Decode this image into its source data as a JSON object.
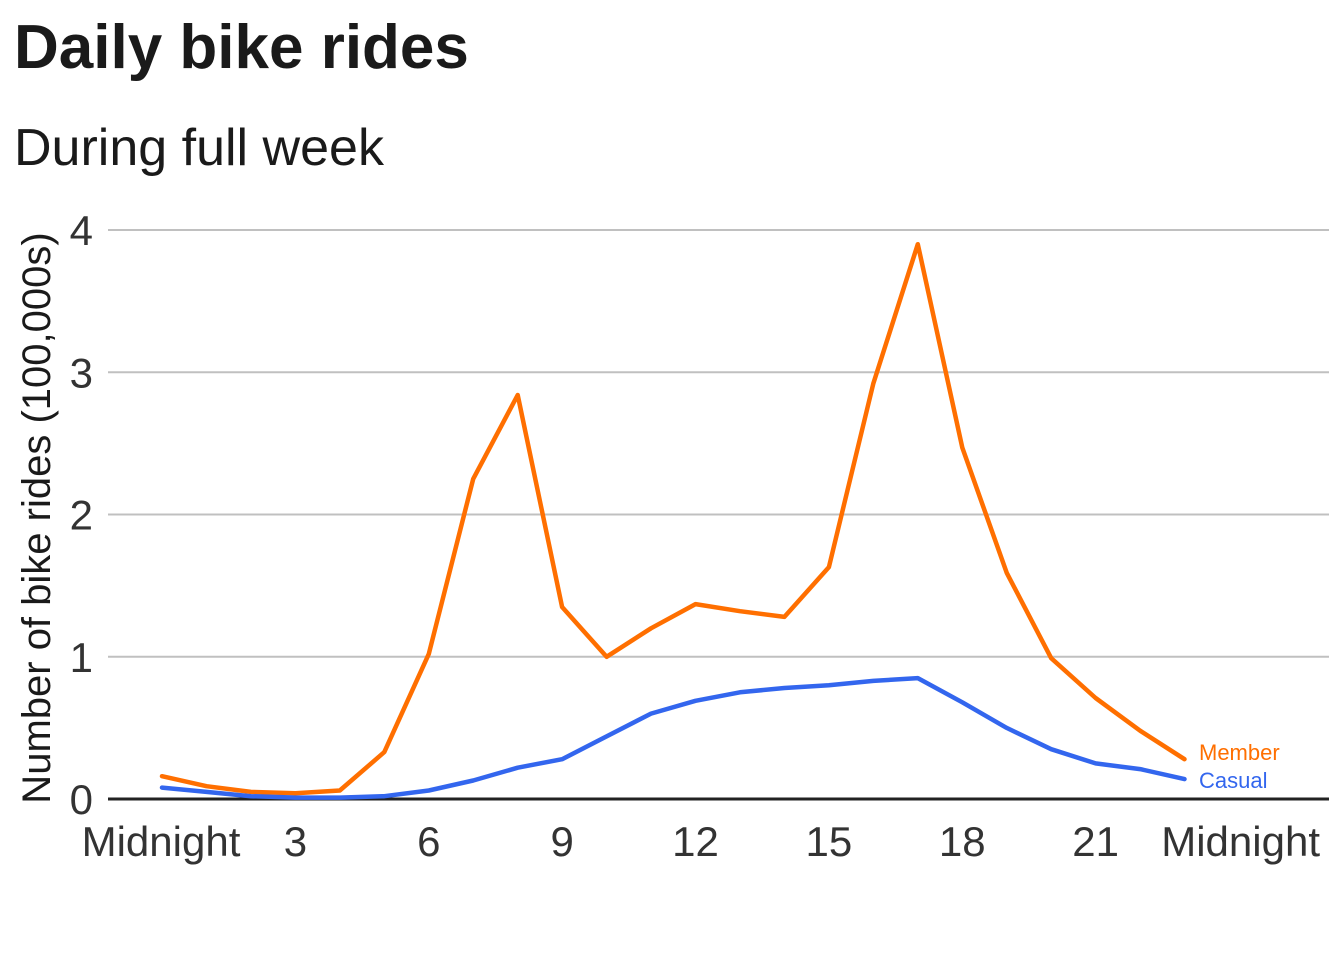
{
  "chart_data": {
    "type": "line",
    "title": "Daily bike rides",
    "subtitle": "During full week",
    "xlabel": "",
    "ylabel": "Number of bike rides (100,000s)",
    "x": [
      0,
      1,
      2,
      3,
      4,
      5,
      6,
      7,
      8,
      9,
      10,
      11,
      12,
      13,
      14,
      15,
      16,
      17,
      18,
      19,
      20,
      21,
      22,
      23
    ],
    "xlim": [
      0,
      24
    ],
    "ylim": [
      0,
      4
    ],
    "x_ticks": [
      {
        "value": 0,
        "label": "Midnight"
      },
      {
        "value": 3,
        "label": "3"
      },
      {
        "value": 6,
        "label": "6"
      },
      {
        "value": 9,
        "label": "9"
      },
      {
        "value": 12,
        "label": "12"
      },
      {
        "value": 15,
        "label": "15"
      },
      {
        "value": 18,
        "label": "18"
      },
      {
        "value": 21,
        "label": "21"
      },
      {
        "value": 24,
        "label": "Midnight"
      }
    ],
    "y_ticks": [
      {
        "value": 0,
        "label": "0"
      },
      {
        "value": 1,
        "label": "1"
      },
      {
        "value": 2,
        "label": "2"
      },
      {
        "value": 3,
        "label": "3"
      },
      {
        "value": 4,
        "label": "4"
      }
    ],
    "grid": true,
    "legend": "direct labels at line ends",
    "series": [
      {
        "name": "Member",
        "color": "#ff6f00",
        "values": [
          0.16,
          0.09,
          0.05,
          0.04,
          0.06,
          0.33,
          1.02,
          2.25,
          2.84,
          1.35,
          1.0,
          1.2,
          1.37,
          1.32,
          1.28,
          1.63,
          2.92,
          3.9,
          2.47,
          1.59,
          0.99,
          0.71,
          0.48,
          0.28
        ]
      },
      {
        "name": "Casual",
        "color": "#3366ee",
        "values": [
          0.08,
          0.05,
          0.02,
          0.01,
          0.01,
          0.02,
          0.06,
          0.13,
          0.22,
          0.28,
          0.44,
          0.6,
          0.69,
          0.75,
          0.78,
          0.8,
          0.83,
          0.85,
          0.68,
          0.5,
          0.35,
          0.25,
          0.21,
          0.14
        ]
      }
    ]
  }
}
